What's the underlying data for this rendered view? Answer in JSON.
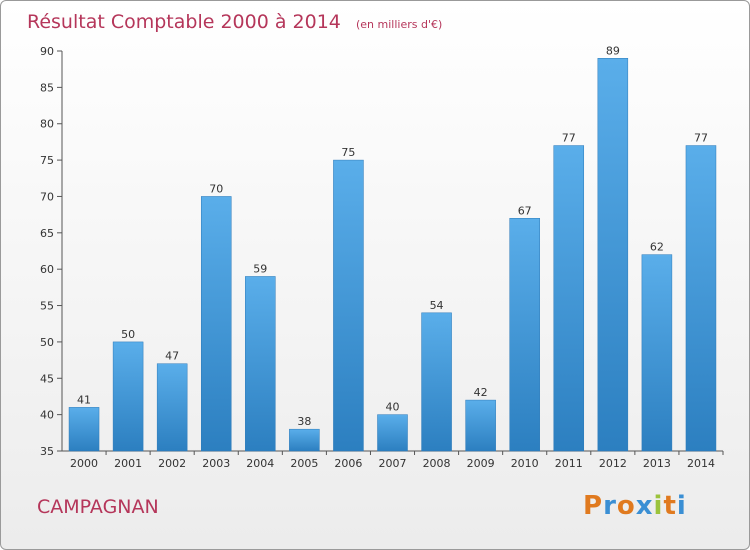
{
  "chart_data": {
    "type": "bar",
    "title": "Résultat Comptable 2000 à 2014",
    "subtitle": "(en milliers d'€)",
    "categories": [
      "2000",
      "2001",
      "2002",
      "2003",
      "2004",
      "2005",
      "2006",
      "2007",
      "2008",
      "2009",
      "2010",
      "2011",
      "2012",
      "2013",
      "2014"
    ],
    "values": [
      41,
      50,
      47,
      70,
      59,
      38,
      75,
      40,
      54,
      42,
      67,
      77,
      89,
      62,
      77
    ],
    "ylim": [
      35,
      90
    ],
    "yticks": [
      35,
      40,
      45,
      50,
      55,
      60,
      65,
      70,
      75,
      80,
      85,
      90
    ],
    "grid": false,
    "bar_color_top": "#5aaeea",
    "bar_color_bottom": "#2c7fc0"
  },
  "commune": "CAMPAGNAN",
  "logo": {
    "letters": [
      "P",
      "r",
      "o",
      "x",
      "i",
      "t",
      "i"
    ],
    "colors": [
      "#e07a1f",
      "#3a8fd4",
      "#e07a1f",
      "#3a8fd4",
      "#9bc33c",
      "#e07a1f",
      "#3a8fd4"
    ]
  }
}
